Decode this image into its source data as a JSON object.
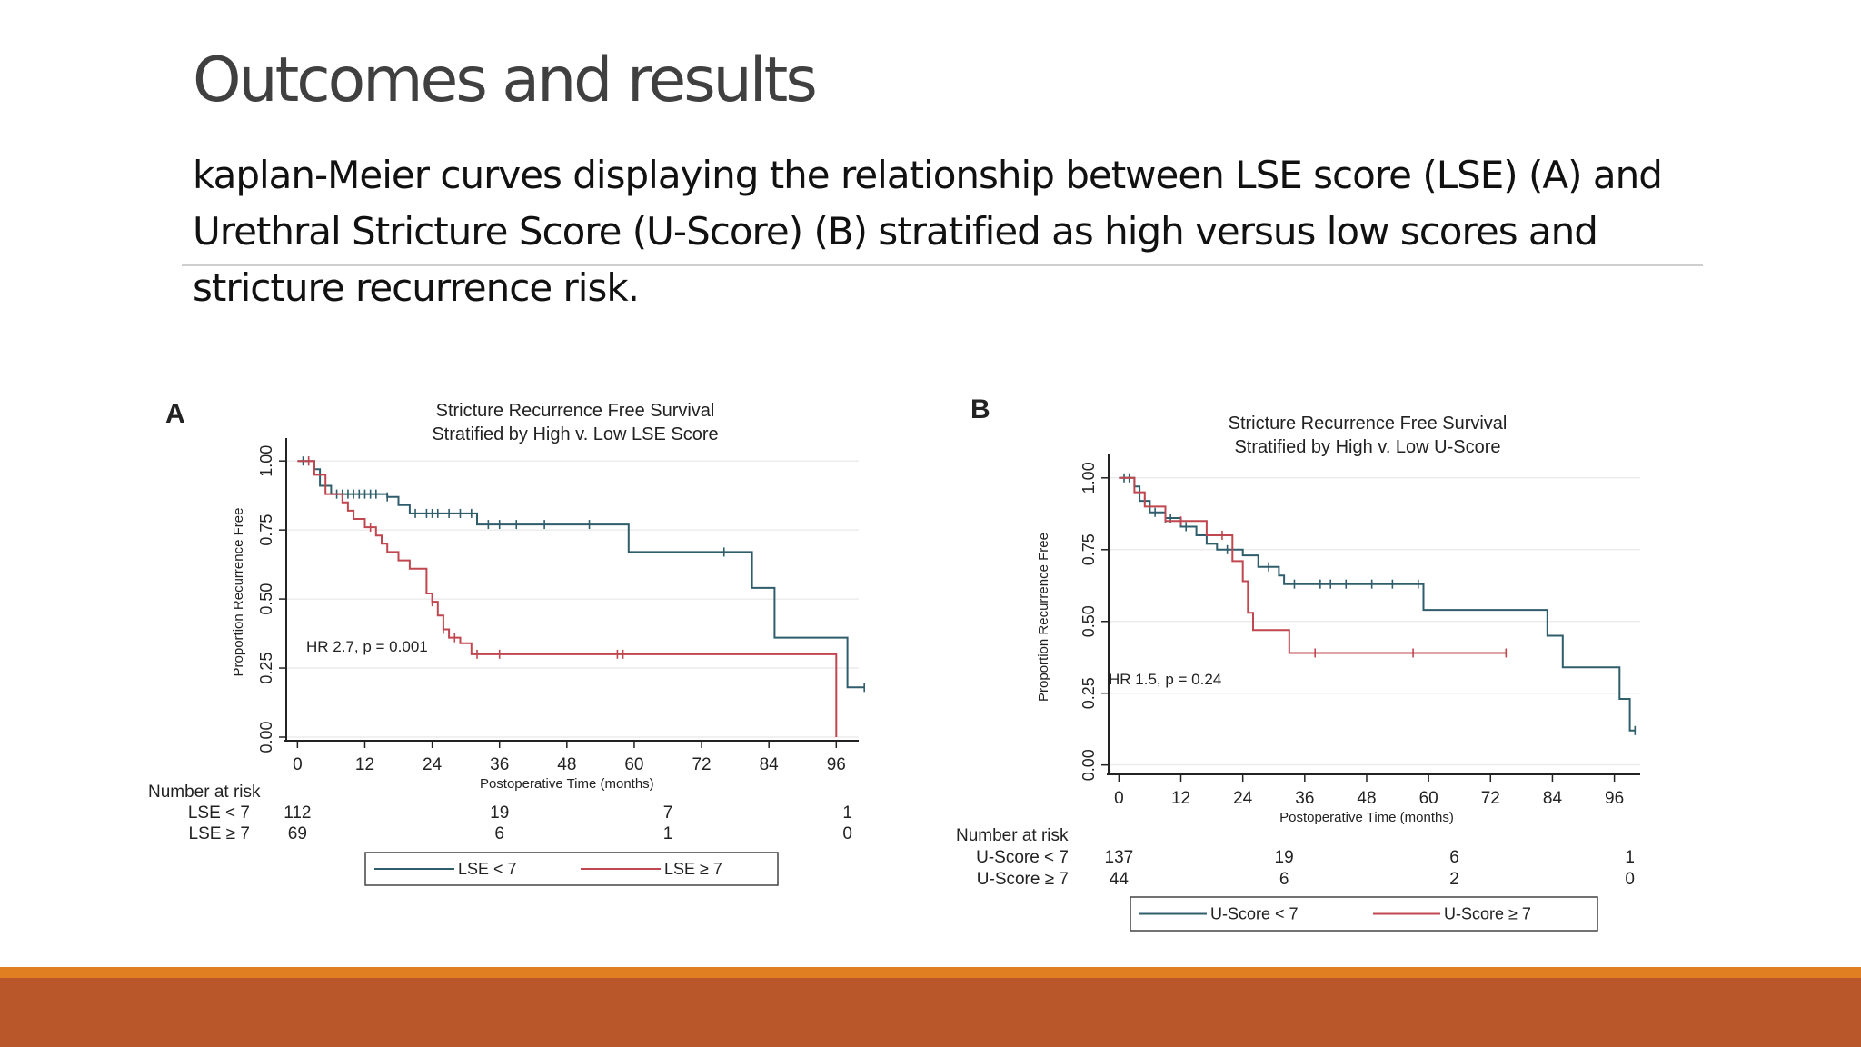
{
  "slide": {
    "title": "Outcomes and results",
    "body": "kaplan-Meier curves displaying the relationship between LSE score (LSE) (A) and Urethral Stricture Score (U-Score) (B) stratified as high versus low scores and stricture recurrence risk."
  },
  "colors": {
    "low_series": "#2f5d6b",
    "high_series": "#c0474f",
    "footer_accent": "#e07f22",
    "footer_band": "#b9572b"
  },
  "chart_data": [
    {
      "type": "line",
      "panel_label": "A",
      "title": "Stricture Recurrence Free Survival",
      "subtitle": "Stratified by High v. Low LSE Score",
      "xlabel": "Postoperative Time (months)",
      "ylabel": "Proportion Recurrence Free",
      "xlim": [
        -2,
        100
      ],
      "ylim": [
        0,
        1.05
      ],
      "xticks": [
        0,
        12,
        24,
        36,
        48,
        60,
        72,
        84,
        96
      ],
      "yticks": [
        "0.00",
        "0.25",
        "0.50",
        "0.75",
        "1.00"
      ],
      "grid": "horizontal",
      "annotation": "HR 2.7, p = 0.001",
      "risk_table": {
        "heading": "Number at risk",
        "times": [
          0,
          36,
          66,
          98
        ],
        "rows": [
          {
            "label": "LSE < 7",
            "counts": [
              "112",
              "19",
              "7",
              "1"
            ]
          },
          {
            "label": "LSE ≥ 7",
            "counts": [
              "69",
              "6",
              "1",
              "0"
            ]
          }
        ]
      },
      "legend": {
        "position": "bottom",
        "entries": [
          "LSE < 7",
          "LSE ≥ 7"
        ]
      },
      "series": [
        {
          "name": "LSE < 7",
          "color": "#2f5d6b",
          "steps": [
            [
              0,
              1.0
            ],
            [
              3,
              0.97
            ],
            [
              4,
              0.91
            ],
            [
              6,
              0.88
            ],
            [
              16,
              0.87
            ],
            [
              18,
              0.84
            ],
            [
              20,
              0.81
            ],
            [
              32,
              0.77
            ],
            [
              59,
              0.67
            ],
            [
              79,
              0.67
            ],
            [
              81,
              0.54
            ],
            [
              85,
              0.36
            ],
            [
              98,
              0.18
            ],
            [
              101,
              0.18
            ]
          ],
          "censors": [
            [
              1,
              1.0
            ],
            [
              2,
              1.0
            ],
            [
              7,
              0.88
            ],
            [
              8,
              0.88
            ],
            [
              9,
              0.88
            ],
            [
              10,
              0.88
            ],
            [
              11,
              0.88
            ],
            [
              12,
              0.88
            ],
            [
              13,
              0.88
            ],
            [
              14,
              0.88
            ],
            [
              16,
              0.87
            ],
            [
              21,
              0.81
            ],
            [
              23,
              0.81
            ],
            [
              24,
              0.81
            ],
            [
              25,
              0.81
            ],
            [
              27,
              0.81
            ],
            [
              29,
              0.81
            ],
            [
              31,
              0.81
            ],
            [
              34,
              0.77
            ],
            [
              36,
              0.77
            ],
            [
              39,
              0.77
            ],
            [
              44,
              0.77
            ],
            [
              52,
              0.77
            ],
            [
              76,
              0.67
            ],
            [
              101,
              0.18
            ]
          ]
        },
        {
          "name": "LSE ≥ 7",
          "color": "#c0474f",
          "steps": [
            [
              0,
              1.0
            ],
            [
              3,
              0.95
            ],
            [
              5,
              0.88
            ],
            [
              8,
              0.85
            ],
            [
              9,
              0.82
            ],
            [
              10,
              0.79
            ],
            [
              12,
              0.76
            ],
            [
              14,
              0.73
            ],
            [
              15,
              0.7
            ],
            [
              16,
              0.67
            ],
            [
              18,
              0.64
            ],
            [
              20,
              0.61
            ],
            [
              23,
              0.52
            ],
            [
              24,
              0.49
            ],
            [
              25,
              0.44
            ],
            [
              26,
              0.39
            ],
            [
              27,
              0.36
            ],
            [
              29,
              0.34
            ],
            [
              31,
              0.3
            ],
            [
              96,
              0.3
            ],
            [
              96,
              0.0
            ]
          ],
          "censors": [
            [
              2,
              1.0
            ],
            [
              13,
              0.76
            ],
            [
              24,
              0.49
            ],
            [
              26,
              0.39
            ],
            [
              28,
              0.36
            ],
            [
              32,
              0.3
            ],
            [
              36,
              0.3
            ],
            [
              57,
              0.3
            ],
            [
              58,
              0.3
            ]
          ]
        }
      ]
    },
    {
      "type": "line",
      "panel_label": "B",
      "title": "Stricture Recurrence Free Survival",
      "subtitle": "Stratified by High v. Low U-Score",
      "xlabel": "Postoperative Time (months)",
      "ylabel": "Proportion Recurrence Free",
      "xlim": [
        -2,
        101
      ],
      "ylim": [
        -0.02,
        1.05
      ],
      "xticks": [
        0,
        12,
        24,
        36,
        48,
        60,
        72,
        84,
        96
      ],
      "yticks": [
        "0.00",
        "0.25",
        "0.50",
        "0.75",
        "1.00"
      ],
      "grid": "horizontal",
      "annotation": "HR 1.5, p = 0.24",
      "risk_table": {
        "heading": "Number at risk",
        "times": [
          0,
          32,
          65,
          99
        ],
        "rows": [
          {
            "label": "U-Score < 7",
            "counts": [
              "137",
              "19",
              "6",
              "1"
            ]
          },
          {
            "label": "U-Score ≥ 7",
            "counts": [
              "44",
              "6",
              "2",
              "0"
            ]
          }
        ]
      },
      "legend": {
        "position": "bottom",
        "entries": [
          "U-Score < 7",
          "U-Score ≥ 7"
        ]
      },
      "series": [
        {
          "name": "U-Score < 7",
          "color": "#2f5d6b",
          "steps": [
            [
              0,
              1.0
            ],
            [
              3,
              0.97
            ],
            [
              4,
              0.92
            ],
            [
              6,
              0.88
            ],
            [
              9,
              0.86
            ],
            [
              12,
              0.83
            ],
            [
              15,
              0.8
            ],
            [
              17,
              0.77
            ],
            [
              19,
              0.75
            ],
            [
              24,
              0.73
            ],
            [
              27,
              0.69
            ],
            [
              31,
              0.66
            ],
            [
              32,
              0.63
            ],
            [
              59,
              0.54
            ],
            [
              81,
              0.54
            ],
            [
              83,
              0.45
            ],
            [
              86,
              0.34
            ],
            [
              96,
              0.34
            ],
            [
              97,
              0.23
            ],
            [
              99,
              0.12
            ],
            [
              100,
              0.12
            ]
          ],
          "censors": [
            [
              1,
              1.0
            ],
            [
              2,
              1.0
            ],
            [
              5,
              0.92
            ],
            [
              7,
              0.88
            ],
            [
              9,
              0.86
            ],
            [
              10,
              0.86
            ],
            [
              13,
              0.83
            ],
            [
              21,
              0.75
            ],
            [
              29,
              0.69
            ],
            [
              34,
              0.63
            ],
            [
              39,
              0.63
            ],
            [
              41,
              0.63
            ],
            [
              44,
              0.63
            ],
            [
              49,
              0.63
            ],
            [
              53,
              0.63
            ],
            [
              58,
              0.63
            ],
            [
              100,
              0.12
            ]
          ]
        },
        {
          "name": "U-Score ≥ 7",
          "color": "#c0474f",
          "steps": [
            [
              0,
              1.0
            ],
            [
              3,
              0.95
            ],
            [
              5,
              0.9
            ],
            [
              9,
              0.85
            ],
            [
              17,
              0.8
            ],
            [
              22,
              0.71
            ],
            [
              24,
              0.64
            ],
            [
              25,
              0.53
            ],
            [
              26,
              0.47
            ],
            [
              33,
              0.39
            ],
            [
              75,
              0.39
            ]
          ],
          "censors": [
            [
              12,
              0.85
            ],
            [
              20,
              0.8
            ],
            [
              38,
              0.39
            ],
            [
              57,
              0.39
            ],
            [
              75,
              0.39
            ]
          ]
        }
      ]
    }
  ]
}
